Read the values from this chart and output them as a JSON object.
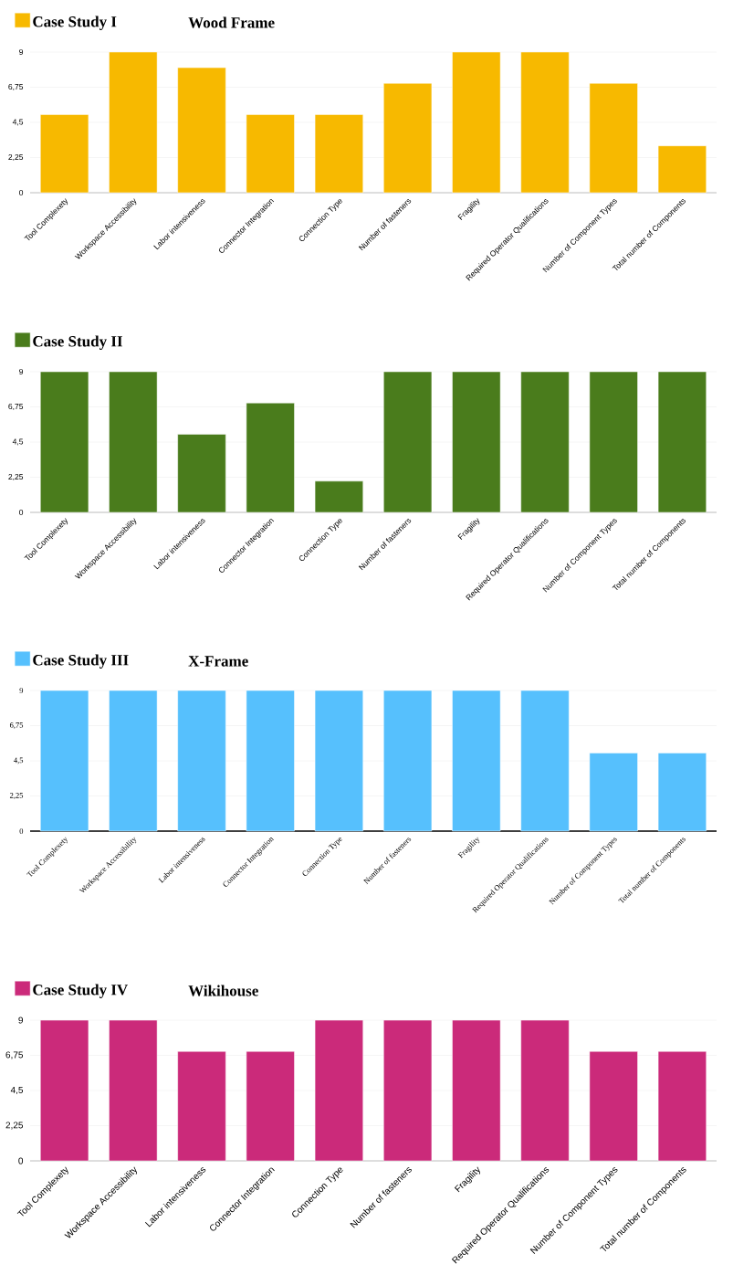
{
  "chart_data": [
    {
      "type": "bar",
      "subtitle": "Wood Frame",
      "categories": [
        "Tool Complexety",
        "Workspace Accessibility",
        "Labor intensiveness",
        "Connector Integration",
        "Connection Type",
        "Number of fasteners",
        "Fragility",
        "Required Operator Qualifications",
        "Number of Component Types",
        "Total number of Components"
      ],
      "series": [
        {
          "name": "Case Study I",
          "color": "#f7b900",
          "values": [
            5,
            9,
            8,
            5,
            5,
            7,
            9,
            9,
            7,
            3
          ]
        }
      ],
      "ylim": [
        0,
        9
      ],
      "yticks": [
        0,
        {
          "value": 2.25,
          "label": "2,25"
        },
        {
          "value": 4.5,
          "label": "4,5"
        },
        {
          "value": 6.75,
          "label": "6,75"
        },
        9
      ],
      "grid": "y",
      "legend": "top left"
    },
    {
      "type": "bar",
      "categories": [
        "Tool Complexety",
        "Workspace Accessibility",
        "Labor intensiveness",
        "Connector Integration",
        "Connection Type",
        "Number of fasteners",
        "Fragility",
        "Required Operator Qualifications",
        "Number of Component Types",
        "Total number of Components"
      ],
      "series": [
        {
          "name": "Case Study II",
          "color": "#4a7c1c",
          "values": [
            9,
            9,
            5,
            7,
            2,
            9,
            9,
            9,
            9,
            9
          ]
        }
      ],
      "ylim": [
        0,
        9
      ],
      "yticks": [
        0,
        {
          "value": 2.25,
          "label": "2,25"
        },
        {
          "value": 4.5,
          "label": "4,5"
        },
        {
          "value": 6.75,
          "label": "6,75"
        },
        9
      ],
      "grid": "y",
      "legend": "top left"
    },
    {
      "type": "bar",
      "subtitle": "X-Frame",
      "categories": [
        "Tool Complexety",
        "Workspace Accessibility",
        "Labor intensiveness",
        "Connector Integration",
        "Connection Type",
        "Number of fasteners",
        "Fragility",
        "Required Operator Qualifications",
        "Number of Component Types",
        "Total number of Components"
      ],
      "series": [
        {
          "name": "Case Study III",
          "color": "#56c0fd",
          "values": [
            9,
            9,
            9,
            9,
            9,
            9,
            9,
            9,
            5,
            5
          ]
        }
      ],
      "ylim": [
        0,
        9
      ],
      "yticks": [
        0,
        {
          "value": 2.25,
          "label": "2,25"
        },
        {
          "value": 4.5,
          "label": "4,5"
        },
        {
          "value": 6.75,
          "label": "6,75"
        },
        9
      ],
      "grid": "y",
      "legend": "top left"
    },
    {
      "type": "bar",
      "subtitle": "Wikihouse",
      "categories": [
        "Tool Complexety",
        "Workspace Accessibility",
        "Labor intensiveness",
        "Connector Integration",
        "Connection Type",
        "Number of fasteners",
        "Fragility",
        "Required Operator Qualifications",
        "Number of Component Types",
        "Total number of Components"
      ],
      "series": [
        {
          "name": "Case Study IV",
          "color": "#cb2a7a",
          "values": [
            9,
            9,
            7,
            7,
            9,
            9,
            9,
            9,
            7,
            7
          ]
        }
      ],
      "ylim": [
        0,
        9
      ],
      "yticks": [
        0,
        {
          "value": 2.25,
          "label": "2,25"
        },
        {
          "value": 4.5,
          "label": "4,5"
        },
        {
          "value": 6.75,
          "label": "6,75"
        },
        9
      ],
      "grid": "y",
      "legend": "top left"
    }
  ]
}
